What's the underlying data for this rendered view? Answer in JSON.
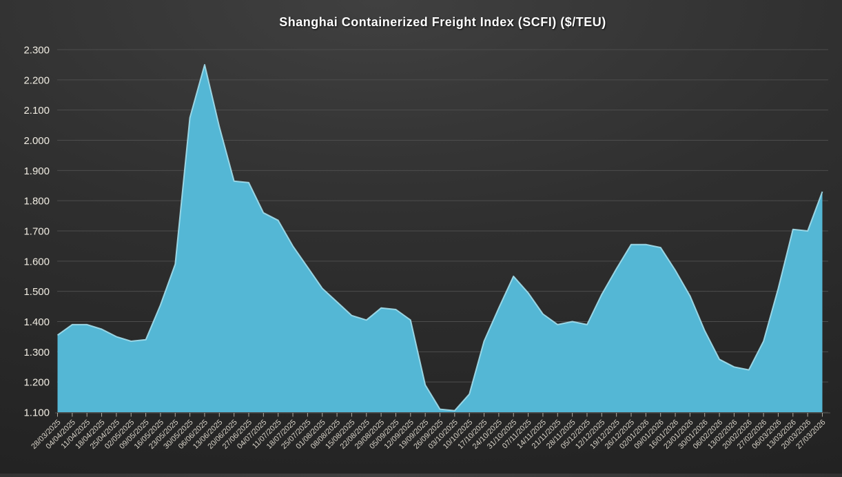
{
  "chart_data": {
    "type": "area",
    "title": "Shanghai Containerized Freight Index (SCFI) ($/TEU)",
    "xlabel": "",
    "ylabel": "",
    "legend": "none",
    "grid": "horizontal",
    "x_label_rotation": -45,
    "ylim": [
      1100,
      2300
    ],
    "ytick_step": 100,
    "y_tick_labels": [
      "1.100",
      "1.200",
      "1.300",
      "1.400",
      "1.500",
      "1.600",
      "1.700",
      "1.800",
      "1.900",
      "2.000",
      "2.100",
      "2.200",
      "2.300"
    ],
    "categories": [
      "28/03/2025",
      "04/04/2025",
      "11/04/2025",
      "18/04/2025",
      "25/04/2025",
      "02/05/2025",
      "09/05/2025",
      "16/05/2025",
      "23/05/2025",
      "30/05/2025",
      "06/06/2025",
      "13/06/2025",
      "20/06/2025",
      "27/06/2025",
      "04/07/2025",
      "11/07/2025",
      "18/07/2025",
      "25/07/2025",
      "01/08/2025",
      "08/08/2025",
      "15/08/2025",
      "22/08/2025",
      "29/08/2025",
      "05/09/2025",
      "12/09/2025",
      "19/09/2025",
      "26/09/2025",
      "03/10/2025",
      "10/10/2025",
      "17/10/2025",
      "24/10/2025",
      "31/10/2025",
      "07/11/2025",
      "14/11/2025",
      "21/11/2025",
      "28/11/2025",
      "05/12/2025",
      "12/12/2025",
      "19/12/2025",
      "26/12/2025",
      "02/01/2026",
      "09/01/2026",
      "16/01/2026",
      "23/01/2026",
      "30/01/2026",
      "06/02/2026",
      "13/02/2026",
      "20/02/2026",
      "27/02/2026",
      "06/03/2026",
      "13/03/2026",
      "20/03/2026",
      "27/03/2026"
    ],
    "values": [
      1355,
      1390,
      1390,
      1375,
      1350,
      1335,
      1340,
      1455,
      1590,
      2075,
      2250,
      2045,
      1865,
      1860,
      1760,
      1735,
      1650,
      1580,
      1510,
      1465,
      1420,
      1405,
      1445,
      1440,
      1405,
      1190,
      1110,
      1105,
      1160,
      1335,
      1445,
      1550,
      1495,
      1425,
      1390,
      1400,
      1390,
      1490,
      1575,
      1655,
      1655,
      1645,
      1570,
      1485,
      1370,
      1275,
      1250,
      1240,
      1335,
      1510,
      1705,
      1700,
      1830
    ],
    "colors": {
      "area_fill": "#54b7d5",
      "area_edge": "#a9e4f2",
      "gridline": "#4d4d4d",
      "axis_text": "#f1ede3",
      "x_axis_text": "#d9d4c9",
      "title_text": "#ffffff",
      "tick": "#c9c4b8",
      "background_start": "#404040",
      "background_mid": "#2f2f2f",
      "background_end": "#222222"
    }
  }
}
